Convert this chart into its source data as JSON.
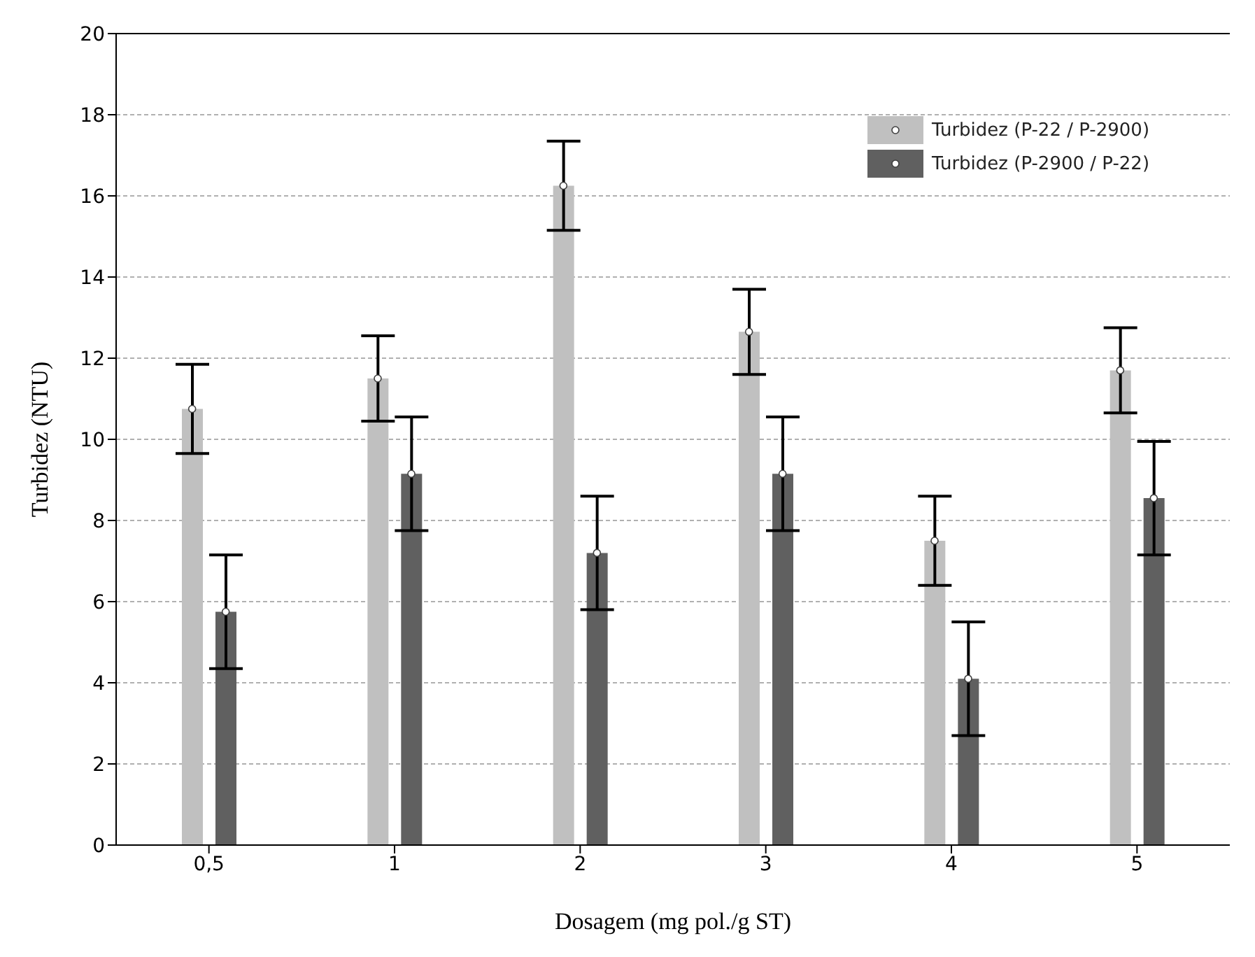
{
  "chart_data": {
    "type": "bar",
    "xlabel": "Dosagem (mg pol./g ST)",
    "ylabel": "Turbidez (NTU)",
    "categories": [
      "0,5",
      "1",
      "2",
      "3",
      "4",
      "5"
    ],
    "series": [
      {
        "name": "Turbidez (P-22 / P-2900)",
        "color": "#c0c0c0",
        "values": [
          10.75,
          11.5,
          16.25,
          12.65,
          7.5,
          11.7
        ],
        "errors": [
          1.1,
          1.05,
          1.1,
          1.05,
          1.1,
          1.05
        ]
      },
      {
        "name": "Turbidez (P-2900 / P-22)",
        "color": "#606060",
        "values": [
          5.75,
          9.15,
          7.2,
          9.15,
          4.1,
          8.55
        ],
        "errors": [
          1.4,
          1.4,
          1.4,
          1.4,
          1.4,
          1.4
        ]
      },
      {
        "type": "scatter",
        "color": "#ffffff",
        "x": [
          "0,5",
          "1",
          "2",
          "3",
          "4",
          "5"
        ],
        "values": [
          10.75,
          11.5,
          16.25,
          12.65,
          7.5,
          11.7
        ]
      },
      {
        "type": "scatter",
        "color": "#ffffff",
        "x": [
          "0,5",
          "1",
          "2",
          "3",
          "4",
          "5"
        ],
        "values": [
          5.75,
          9.15,
          7.2,
          9.15,
          4.1,
          8.55
        ]
      }
    ],
    "ylim": [
      0,
      20
    ],
    "yticks": [
      0,
      2,
      4,
      6,
      8,
      10,
      12,
      14,
      16,
      18,
      20
    ],
    "grid": "y",
    "legend": "top right",
    "marker": "circle"
  }
}
